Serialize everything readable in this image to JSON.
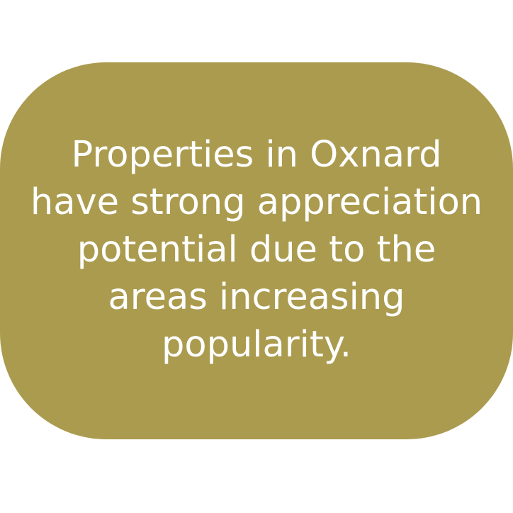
{
  "card": {
    "message": "Properties in Oxnard have strong appreciation potential due to the areas increasing popularity.",
    "background_color": "#AB9B4F",
    "text_color": "#FFFFFF"
  }
}
